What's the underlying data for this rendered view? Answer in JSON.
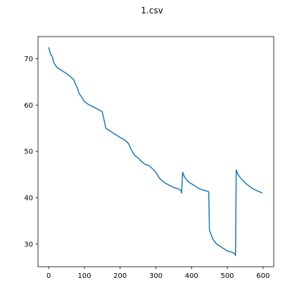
{
  "chart_data": {
    "type": "line",
    "title": "1.csv",
    "xlabel": "",
    "ylabel": "",
    "xlim": [
      -30,
      630
    ],
    "ylim": [
      25.1,
      74.8
    ],
    "x_ticks": [
      0,
      100,
      200,
      300,
      400,
      500,
      600
    ],
    "y_ticks": [
      30,
      40,
      50,
      60,
      70
    ],
    "grid": false,
    "legend": "none",
    "line_color": "#1f77b4",
    "series": [
      {
        "x": [
          0,
          5,
          10,
          15,
          20,
          25,
          30,
          40,
          50,
          60,
          70,
          75,
          80,
          85,
          90,
          100,
          110,
          120,
          130,
          140,
          145,
          150,
          155,
          160,
          170,
          180,
          190,
          200,
          210,
          220,
          225,
          230,
          240,
          250,
          260,
          270,
          280,
          290,
          300,
          310,
          320,
          330,
          340,
          350,
          360,
          370,
          372,
          375,
          380,
          390,
          400,
          410,
          420,
          430,
          440,
          448,
          450,
          452,
          460,
          470,
          480,
          490,
          500,
          510,
          520,
          523,
          525,
          530,
          540,
          550,
          560,
          570,
          580,
          590,
          598
        ],
        "y": [
          72.5,
          71.0,
          70.5,
          69.0,
          68.5,
          68.0,
          67.8,
          67.3,
          66.8,
          66.2,
          65.5,
          64.5,
          63.8,
          62.5,
          62.0,
          60.8,
          60.2,
          59.8,
          59.4,
          59.0,
          58.8,
          58.5,
          56.8,
          55.0,
          54.5,
          54.0,
          53.5,
          53.0,
          52.6,
          52.0,
          51.5,
          50.5,
          49.2,
          48.6,
          47.8,
          47.2,
          47.0,
          46.3,
          45.5,
          44.2,
          43.5,
          43.0,
          42.6,
          42.2,
          42.0,
          41.6,
          41.0,
          45.5,
          44.5,
          43.5,
          43.0,
          42.5,
          42.0,
          41.7,
          41.5,
          41.3,
          33.0,
          32.5,
          31.0,
          30.0,
          29.5,
          29.0,
          28.5,
          28.3,
          28.0,
          27.5,
          46.0,
          45.0,
          44.0,
          43.2,
          42.6,
          42.0,
          41.6,
          41.3,
          41.0
        ]
      }
    ]
  }
}
